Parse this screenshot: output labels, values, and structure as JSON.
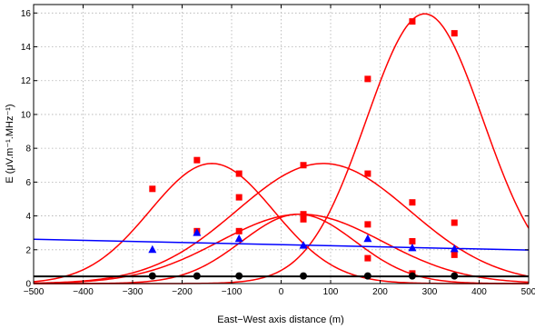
{
  "chart_data": {
    "type": "scatter",
    "title": "",
    "xlabel": "East−West axis distance (m)",
    "ylabel": "E (μV.m⁻¹.MHz⁻¹)",
    "xlim": [
      -500,
      500
    ],
    "ylim": [
      0,
      16.5
    ],
    "xticks": [
      -500,
      -400,
      -300,
      -200,
      -100,
      0,
      100,
      200,
      300,
      400,
      500
    ],
    "xtick_labels": [
      "−500",
      "−400",
      "−300",
      "−200",
      "−100",
      "0",
      "100",
      "200",
      "300",
      "400",
      "500"
    ],
    "yticks": [
      0,
      2,
      4,
      6,
      8,
      10,
      12,
      14,
      16
    ],
    "ytick_labels": [
      "0",
      "2",
      "4",
      "6",
      "8",
      "10",
      "12",
      "14",
      "16"
    ],
    "grid": true,
    "legend": "none",
    "series": [
      {
        "color": "#ff0000",
        "marker": "square",
        "points": [
          [
            -260,
            5.6
          ],
          [
            -170,
            7.3
          ],
          [
            -85,
            6.5
          ]
        ],
        "fit": {
          "kind": "gaussian",
          "amplitude": 7.1,
          "center": -140,
          "sigma": 125
        }
      },
      {
        "color": "#ff0000",
        "marker": "square",
        "points": [
          [
            45,
            7.0
          ],
          [
            175,
            6.5
          ],
          [
            265,
            4.8
          ],
          [
            350,
            3.6
          ]
        ],
        "fit": {
          "kind": "gaussian",
          "amplitude": 7.1,
          "center": 85,
          "sigma": 175
        }
      },
      {
        "color": "#ff0000",
        "marker": "square",
        "points": [
          [
            -170,
            3.1
          ],
          [
            -85,
            5.1
          ],
          [
            45,
            4.1
          ],
          [
            175,
            3.5
          ],
          [
            265,
            2.5
          ],
          [
            350,
            1.7
          ]
        ],
        "fit": {
          "kind": "gaussian",
          "amplitude": 4.1,
          "center": 40,
          "sigma": 165
        }
      },
      {
        "color": "#ff0000",
        "marker": "square",
        "points": [
          [
            -85,
            3.1
          ],
          [
            45,
            3.8
          ],
          [
            175,
            1.5
          ],
          [
            265,
            0.6
          ]
        ],
        "fit": {
          "kind": "gaussian",
          "amplitude": 4.1,
          "center": 35,
          "sigma": 115
        }
      },
      {
        "color": "#ff0000",
        "marker": "square",
        "points": [
          [
            175,
            12.1
          ],
          [
            265,
            15.5
          ],
          [
            350,
            14.8
          ]
        ],
        "fit": {
          "kind": "gaussian",
          "amplitude": 15.95,
          "center": 290,
          "sigma": 118
        }
      },
      {
        "color": "#0000ff",
        "marker": "triangle",
        "points": [
          [
            -260,
            2.0
          ],
          [
            -170,
            3.0
          ],
          [
            -85,
            2.65
          ],
          [
            45,
            2.25
          ],
          [
            175,
            2.65
          ],
          [
            265,
            2.1
          ],
          [
            350,
            2.05
          ]
        ],
        "fit": {
          "kind": "linear",
          "y_at_xmin": 2.62,
          "y_at_xmax": 1.98
        }
      },
      {
        "color": "#000000",
        "marker": "circle",
        "points": [
          [
            -260,
            0.45
          ],
          [
            -170,
            0.45
          ],
          [
            -85,
            0.45
          ],
          [
            45,
            0.45
          ],
          [
            175,
            0.45
          ],
          [
            265,
            0.45
          ],
          [
            350,
            0.45
          ]
        ],
        "fit": {
          "kind": "linear",
          "y_at_xmin": 0.42,
          "y_at_xmax": 0.42
        }
      }
    ]
  }
}
